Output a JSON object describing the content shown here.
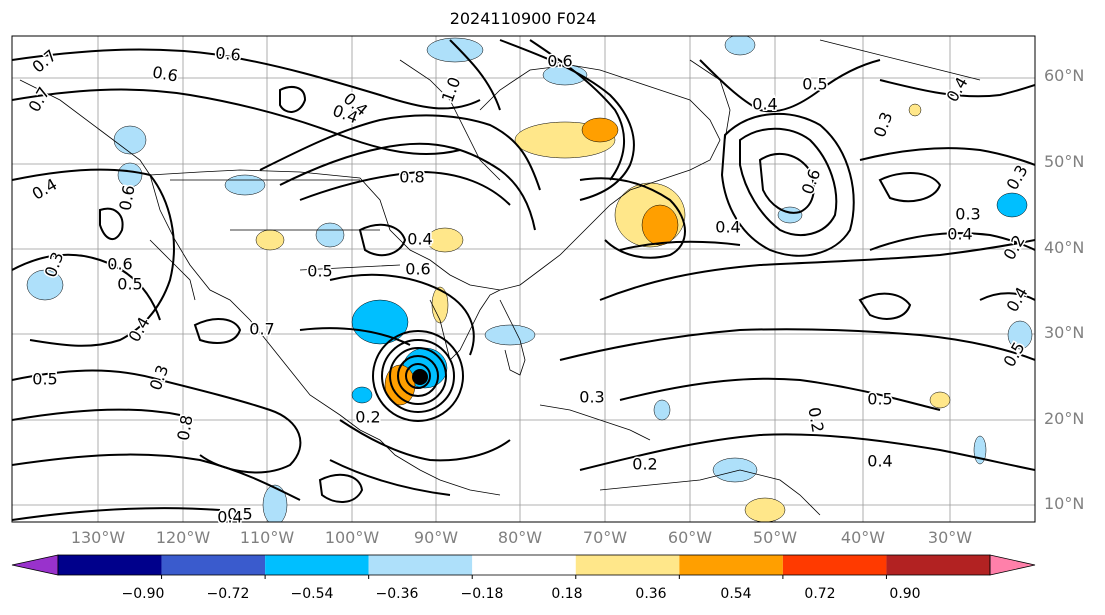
{
  "title": "2024110900 F024",
  "lat_labels": [
    "60°N",
    "50°N",
    "40°N",
    "30°N",
    "20°N",
    "10°N"
  ],
  "lon_labels": [
    "130°W",
    "120°W",
    "110°W",
    "100°W",
    "90°W",
    "80°W",
    "70°W",
    "60°W",
    "50°W",
    "40°W",
    "30°W"
  ],
  "colorbar": {
    "ticks": [
      "−0.90",
      "−0.72",
      "−0.54",
      "−0.36",
      "−0.18",
      "0.18",
      "0.36",
      "0.54",
      "0.72",
      "0.90"
    ],
    "colors": [
      "#9932cc",
      "#00008b",
      "#3a5bcd",
      "#00bfff",
      "#aee0fa",
      "#ffffff",
      "#ffe78a",
      "#ff9f00",
      "#ff3a00",
      "#b22222",
      "#ff80aa"
    ]
  },
  "contour_labels": [
    "0.7",
    "0.6",
    "0.6",
    "0.4",
    "0.7",
    "0.4",
    "1.0",
    "0.6",
    "0.4",
    "0.5",
    "0.6",
    "0.3",
    "0.4",
    "0.6",
    "0.8",
    "0.4",
    "0.6",
    "0.5",
    "0.7",
    "0.5",
    "0.3",
    "0.8",
    "0.5",
    "0.4",
    "0.4",
    "0.5",
    "0.4",
    "0.3",
    "0.4",
    "0.3",
    "0.2",
    "0.3",
    "0.5",
    "0.2",
    "0.4",
    "0.3",
    "0.2",
    "0.6",
    "0.5",
    "0.4",
    "0.4",
    "0.2"
  ]
}
